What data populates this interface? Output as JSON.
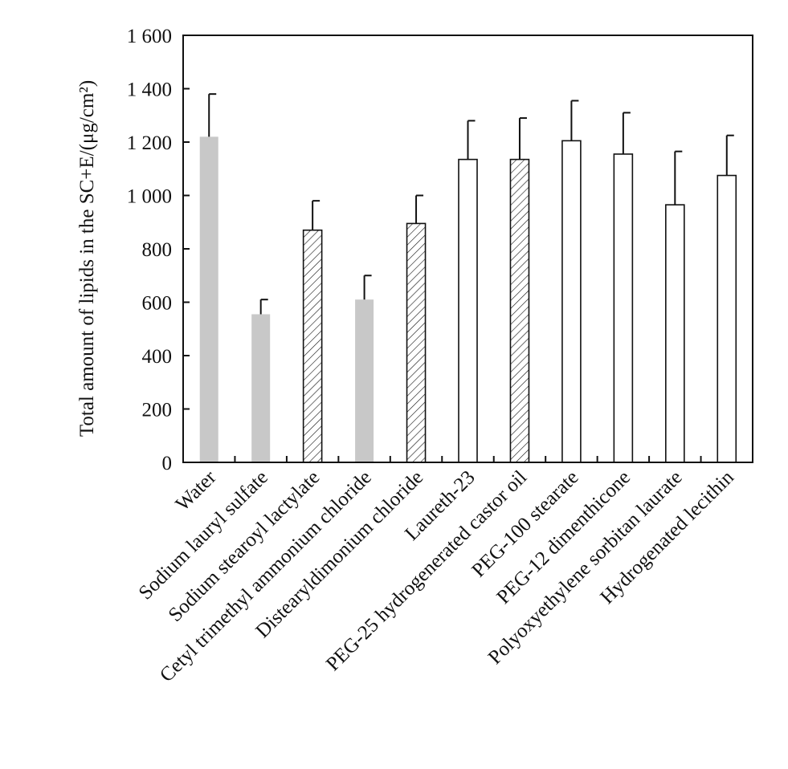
{
  "chart_data": {
    "type": "bar",
    "ylabel": "Total amount of lipids in the SC+E/(μg/cm²)",
    "xlabel": "",
    "ylim": [
      0,
      1600
    ],
    "yticks": [
      0,
      200,
      400,
      600,
      800,
      1000,
      1200,
      1400,
      1600
    ],
    "ytick_labels": [
      "0",
      "200",
      "400",
      "600",
      "800",
      "1 000",
      "1 200",
      "1 400",
      "1 600"
    ],
    "grid": false,
    "categories": [
      "Water",
      "Sodium lauryl sulfate",
      "Sodium stearoyl lactylate",
      "Cetyl trimethyl ammonium chloride",
      "Distearyldimonium chloride",
      "Laureth-23",
      "PEG-25 hydrogenerated castor oil",
      "PEG-100 stearate",
      "PEG-12 dimenthicone",
      "Polyoxyethylene sorbitan laurate",
      "Hydrogenated lecithin"
    ],
    "values": [
      1220,
      555,
      870,
      610,
      895,
      1135,
      1135,
      1205,
      1155,
      965,
      1075
    ],
    "errors": [
      160,
      55,
      110,
      90,
      105,
      145,
      155,
      150,
      155,
      200,
      150
    ],
    "fill_styles": [
      "gray",
      "gray",
      "hatched",
      "gray",
      "hatched",
      "white",
      "hatched",
      "white",
      "white",
      "white",
      "white"
    ],
    "colors": {
      "gray": "#c8c8c8",
      "outline": "#111111",
      "white": "#ffffff"
    }
  }
}
